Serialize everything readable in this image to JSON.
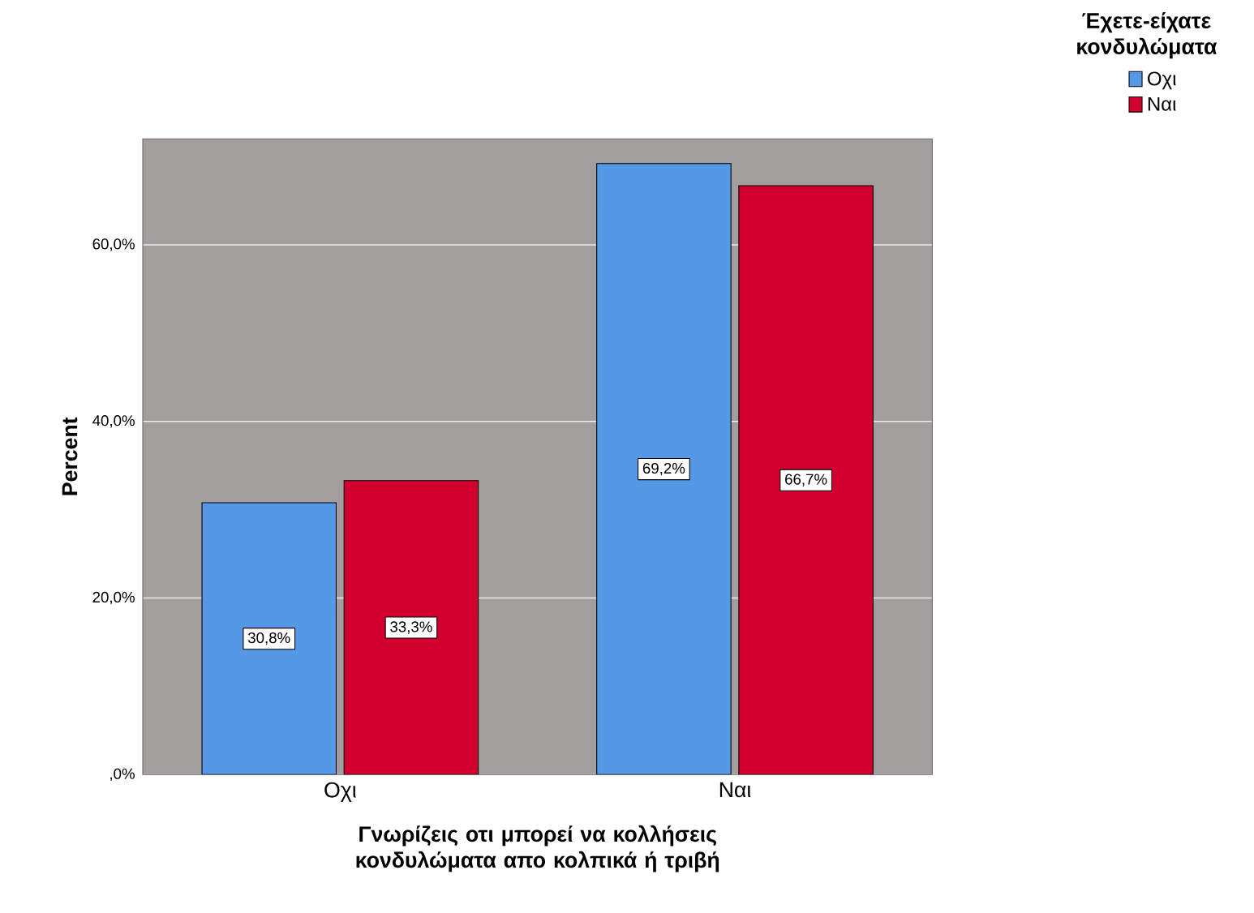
{
  "chart_data": {
    "type": "bar",
    "xlabel": "Γνωρίζεις οτι μπορεί να κολλήσεις κονδυλώματα απο κολπικά ή τριβή",
    "ylabel": "Percent",
    "legend_title": "Έχετε-είχατε κονδυλώματα",
    "categories": [
      "Οχι",
      "Ναι"
    ],
    "series": [
      {
        "name": "Οχι",
        "color": "#5599e6",
        "values": [
          30.8,
          69.2
        ],
        "value_labels": [
          "30,8%",
          "69,2%"
        ]
      },
      {
        "name": "Ναι",
        "color": "#d2002e",
        "values": [
          33.3,
          66.7
        ],
        "value_labels": [
          "33,3%",
          "66,7%"
        ]
      }
    ],
    "ylim": [
      0,
      72
    ],
    "yticks": [
      {
        "value": 0,
        "label": ",0%"
      },
      {
        "value": 20,
        "label": "20,0%"
      },
      {
        "value": 40,
        "label": "40,0%"
      },
      {
        "value": 60,
        "label": "60,0%"
      }
    ],
    "grid": "y",
    "legend": "top right"
  }
}
